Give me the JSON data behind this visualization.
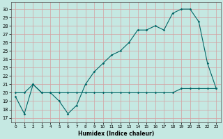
{
  "title": "",
  "xlabel": "Humidex (Indice chaleur)",
  "ylabel": "",
  "bg_color": "#c5e8e2",
  "line_color": "#006666",
  "grid_color": "#d4a0a0",
  "xlim": [
    -0.5,
    23.5
  ],
  "ylim": [
    16.5,
    30.8
  ],
  "yticks": [
    17,
    18,
    19,
    20,
    21,
    22,
    23,
    24,
    25,
    26,
    27,
    28,
    29,
    30
  ],
  "xticks": [
    0,
    1,
    2,
    3,
    4,
    5,
    6,
    7,
    8,
    9,
    10,
    11,
    12,
    13,
    14,
    15,
    16,
    17,
    18,
    19,
    20,
    21,
    22,
    23
  ],
  "series1_x": [
    0,
    1,
    2,
    3,
    4,
    5,
    6,
    7,
    8,
    9,
    10,
    11,
    12,
    13,
    14,
    15,
    16,
    17,
    18,
    19,
    20,
    21,
    22,
    23
  ],
  "series1_y": [
    20.0,
    20.0,
    21.0,
    20.0,
    20.0,
    20.0,
    20.0,
    20.0,
    20.0,
    20.0,
    20.0,
    20.0,
    20.0,
    20.0,
    20.0,
    20.0,
    20.0,
    20.0,
    20.0,
    20.5,
    20.5,
    20.5,
    20.5,
    20.5
  ],
  "series2_x": [
    0,
    1,
    2,
    3,
    4,
    5,
    6,
    7,
    8,
    9,
    10,
    11,
    12,
    13,
    14,
    15,
    16,
    17,
    18,
    19,
    20,
    21,
    22,
    23
  ],
  "series2_y": [
    19.5,
    17.5,
    21.0,
    20.0,
    20.0,
    19.0,
    17.5,
    18.5,
    21.0,
    22.5,
    23.5,
    24.5,
    25.0,
    26.0,
    27.5,
    27.5,
    28.0,
    27.5,
    29.5,
    30.0,
    30.0,
    28.5,
    23.5,
    20.5
  ]
}
